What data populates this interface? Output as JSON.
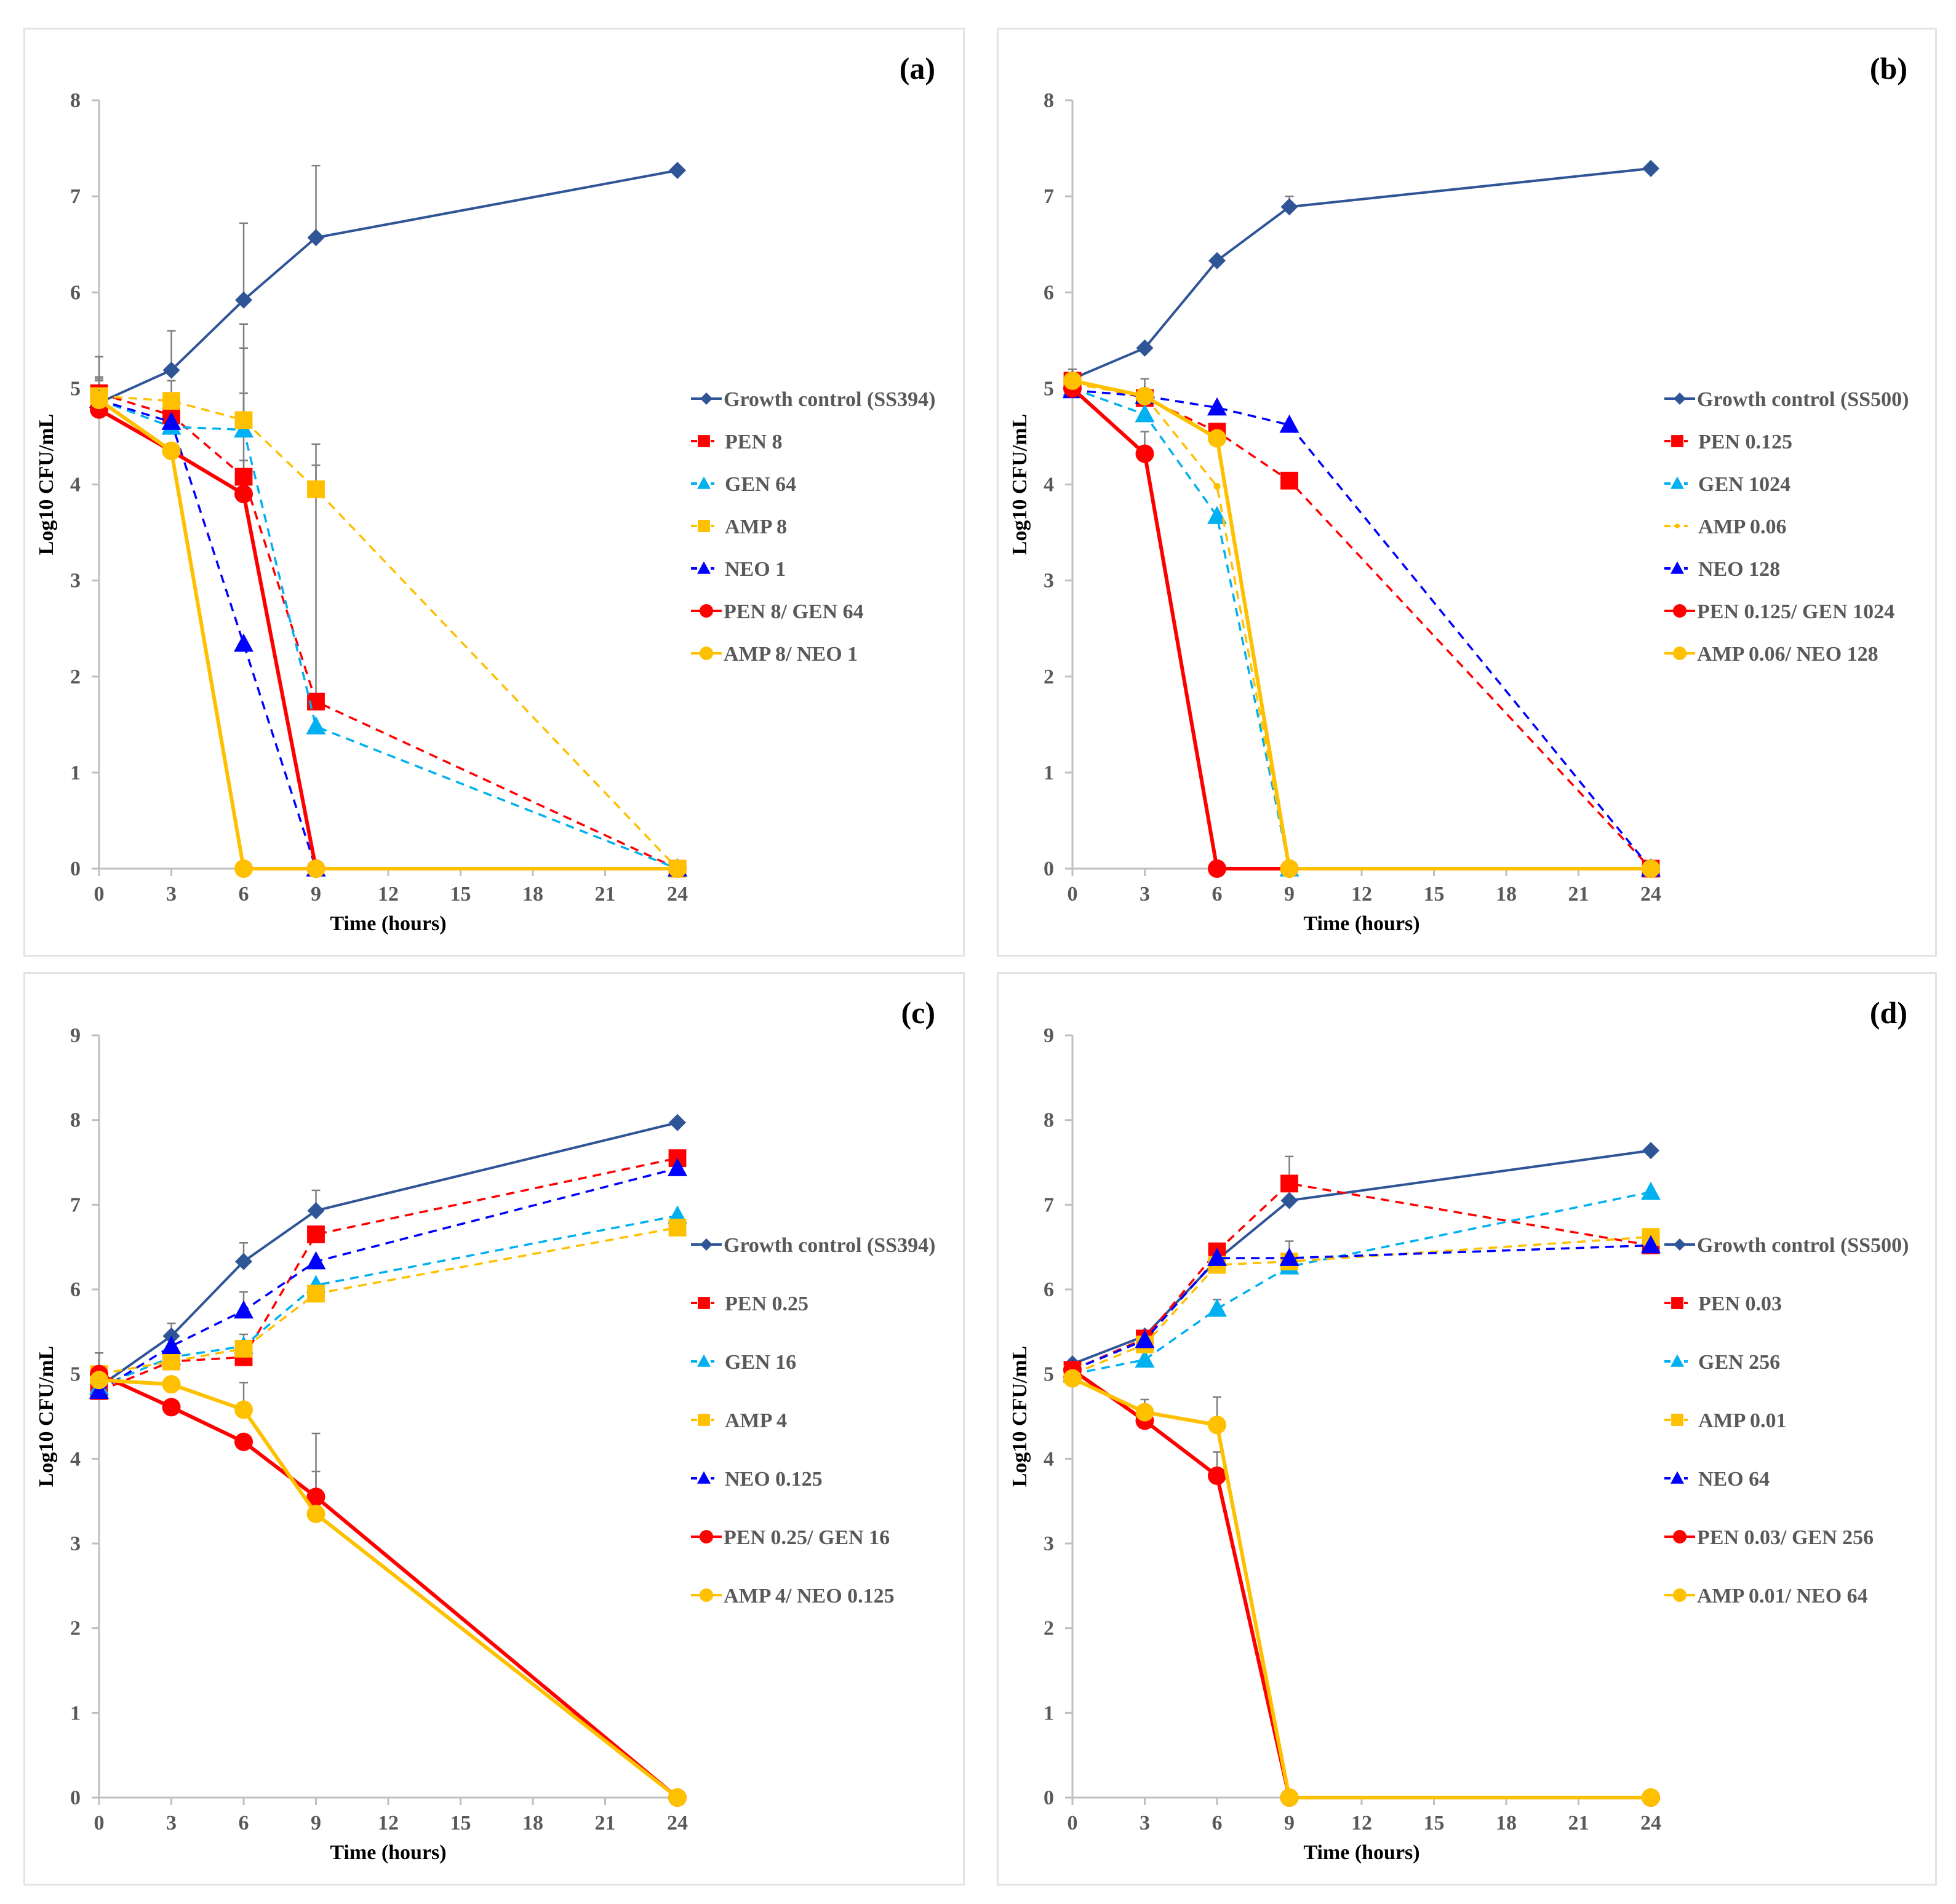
{
  "figure": {
    "colors": {
      "growth_control": "#2F5597",
      "pen": "#FF0000",
      "gen": "#00B0F0",
      "amp": "#FFC000",
      "neo": "#0000FF",
      "axis": "#BFBFBF",
      "errorbar": "#7F7F7F"
    }
  },
  "chart_data": [
    {
      "id": "a",
      "panel_label": "(a)",
      "type": "line",
      "xlabel": "Time (hours)",
      "ylabel": "Log10 CFU/mL",
      "xlim": [
        0,
        24
      ],
      "ylim": [
        0,
        8
      ],
      "xticks": [
        0,
        3,
        6,
        9,
        12,
        15,
        18,
        21,
        24
      ],
      "yticks": [
        0,
        1,
        2,
        3,
        4,
        5,
        6,
        7,
        8
      ],
      "x": [
        0,
        3,
        6,
        9,
        24
      ],
      "legend_position": "right",
      "series": [
        {
          "name": "Growth control (SS394)",
          "color": "#2F5597",
          "marker": "diamond",
          "dash": false,
          "values": [
            4.85,
            5.19,
            5.92,
            6.57,
            7.27
          ],
          "err_upper": [
            5.33,
            5.6,
            6.72,
            7.32,
            null
          ]
        },
        {
          "name": "PEN 8",
          "color": "#FF0000",
          "marker": "square",
          "dash": true,
          "values": [
            4.95,
            4.72,
            4.08,
            1.74,
            0
          ],
          "err_upper": [
            5.12,
            null,
            5.42,
            4.2,
            null
          ]
        },
        {
          "name": "GEN 64",
          "color": "#00B0F0",
          "marker": "triangle",
          "dash": true,
          "values": [
            4.88,
            4.6,
            4.57,
            1.48,
            0
          ],
          "err_upper": [
            5.1,
            null,
            5.67,
            null,
            null
          ]
        },
        {
          "name": "AMP 8",
          "color": "#FFC000",
          "marker": "square",
          "dash": true,
          "values": [
            4.92,
            4.87,
            4.67,
            3.95,
            0
          ],
          "err_upper": [
            5.08,
            5.08,
            4.95,
            4.42,
            null
          ]
        },
        {
          "name": "NEO 1",
          "color": "#0000FF",
          "marker": "triangle",
          "dash": true,
          "values": [
            4.88,
            4.65,
            2.34,
            0,
            0
          ],
          "err_upper": [
            null,
            null,
            null,
            null,
            null
          ]
        },
        {
          "name": "PEN 8/ GEN 64",
          "color": "#FF0000",
          "marker": "circle",
          "dash": false,
          "values": [
            4.78,
            4.35,
            3.9,
            0,
            0
          ],
          "err_upper": [
            null,
            null,
            4.25,
            null,
            null
          ]
        },
        {
          "name": "AMP 8/ NEO 1",
          "color": "#FFC000",
          "marker": "circle",
          "dash": false,
          "values": [
            4.88,
            4.35,
            0,
            0,
            0
          ],
          "err_upper": [
            null,
            null,
            null,
            null,
            null
          ]
        }
      ]
    },
    {
      "id": "b",
      "panel_label": "(b)",
      "type": "line",
      "xlabel": "Time (hours)",
      "ylabel": "Log10 CFU/mL",
      "xlim": [
        0,
        24
      ],
      "ylim": [
        0,
        8
      ],
      "xticks": [
        0,
        3,
        6,
        9,
        12,
        15,
        18,
        21,
        24
      ],
      "yticks": [
        0,
        1,
        2,
        3,
        4,
        5,
        6,
        7,
        8
      ],
      "x": [
        0,
        3,
        6,
        9,
        24
      ],
      "legend_position": "right",
      "series": [
        {
          "name": "Growth control (SS500)",
          "color": "#2F5597",
          "marker": "diamond",
          "dash": false,
          "values": [
            5.1,
            5.42,
            6.33,
            6.89,
            7.29
          ],
          "err_upper": [
            5.2,
            null,
            null,
            7.0,
            null
          ]
        },
        {
          "name": "PEN 0.125",
          "color": "#FF0000",
          "marker": "square",
          "dash": true,
          "values": [
            5.08,
            4.9,
            4.55,
            4.04,
            0
          ],
          "err_upper": [
            null,
            null,
            null,
            null,
            null
          ]
        },
        {
          "name": "GEN 1024",
          "color": "#00B0F0",
          "marker": "triangle",
          "dash": true,
          "values": [
            5.0,
            4.73,
            3.67,
            0,
            0
          ],
          "err_upper": [
            null,
            null,
            null,
            null,
            null
          ]
        },
        {
          "name": "AMP 0.06",
          "color": "#FFC000",
          "marker": "dot",
          "dash": true,
          "values": [
            5.05,
            4.92,
            3.98,
            0,
            0
          ],
          "err_upper": [
            null,
            null,
            null,
            null,
            null
          ]
        },
        {
          "name": "NEO 128",
          "color": "#0000FF",
          "marker": "triangle",
          "dash": true,
          "values": [
            4.98,
            4.92,
            4.8,
            4.62,
            0
          ],
          "err_upper": [
            null,
            null,
            null,
            null,
            null
          ]
        },
        {
          "name": "PEN 0.125/ GEN 1024",
          "color": "#FF0000",
          "marker": "circle",
          "dash": false,
          "values": [
            5.0,
            4.32,
            0,
            0,
            0
          ],
          "err_upper": [
            null,
            4.55,
            null,
            null,
            null
          ]
        },
        {
          "name": "AMP 0.06/ NEO 128",
          "color": "#FFC000",
          "marker": "circle",
          "dash": false,
          "values": [
            5.08,
            4.92,
            4.48,
            0,
            0
          ],
          "err_upper": [
            null,
            5.1,
            null,
            null,
            null
          ]
        }
      ]
    },
    {
      "id": "c",
      "panel_label": "(c)",
      "type": "line",
      "xlabel": "Time (hours)",
      "ylabel": "Log10 CFU/mL",
      "xlim": [
        0,
        24
      ],
      "ylim": [
        0,
        9
      ],
      "xticks": [
        0,
        3,
        6,
        9,
        12,
        15,
        18,
        21,
        24
      ],
      "yticks": [
        0,
        1,
        2,
        3,
        4,
        5,
        6,
        7,
        8,
        9
      ],
      "x": [
        0,
        3,
        6,
        9,
        24
      ],
      "legend_position": "right",
      "series": [
        {
          "name": "Growth control (SS394)",
          "color": "#2F5597",
          "marker": "diamond",
          "dash": false,
          "values": [
            4.85,
            5.45,
            6.33,
            6.93,
            7.97
          ],
          "err_upper": [
            5.25,
            5.6,
            6.55,
            7.17,
            null
          ]
        },
        {
          "name": "PEN 0.25",
          "color": "#FF0000",
          "marker": "square",
          "dash": true,
          "values": [
            4.8,
            5.15,
            5.2,
            6.65,
            7.55
          ],
          "err_upper": [
            null,
            null,
            null,
            null,
            null
          ]
        },
        {
          "name": "GEN 16",
          "color": "#00B0F0",
          "marker": "triangle",
          "dash": true,
          "values": [
            4.85,
            5.2,
            5.33,
            6.05,
            6.87
          ],
          "err_upper": [
            null,
            null,
            5.47,
            null,
            null
          ]
        },
        {
          "name": "AMP 4",
          "color": "#FFC000",
          "marker": "square",
          "dash": true,
          "values": [
            5.0,
            5.15,
            5.3,
            5.95,
            6.73
          ],
          "err_upper": [
            null,
            null,
            null,
            null,
            null
          ]
        },
        {
          "name": "NEO 0.125",
          "color": "#0000FF",
          "marker": "triangle",
          "dash": true,
          "values": [
            4.8,
            5.33,
            5.75,
            6.33,
            7.43
          ],
          "err_upper": [
            null,
            null,
            5.97,
            null,
            null
          ]
        },
        {
          "name": "PEN 0.25/ GEN 16",
          "color": "#FF0000",
          "marker": "circle",
          "dash": false,
          "values": [
            5.0,
            4.61,
            4.2,
            3.55,
            0
          ],
          "err_upper": [
            null,
            null,
            null,
            3.85,
            null
          ]
        },
        {
          "name": "AMP 4/ NEO 0.125",
          "color": "#FFC000",
          "marker": "circle",
          "dash": false,
          "values": [
            4.93,
            4.88,
            4.58,
            3.35,
            0
          ],
          "err_upper": [
            null,
            null,
            4.9,
            4.3,
            null
          ]
        }
      ]
    },
    {
      "id": "d",
      "panel_label": "(d)",
      "type": "line",
      "xlabel": "Time (hours)",
      "ylabel": "Log10 CFU/mL",
      "xlim": [
        0,
        24
      ],
      "ylim": [
        0,
        9
      ],
      "xticks": [
        0,
        3,
        6,
        9,
        12,
        15,
        18,
        21,
        24
      ],
      "yticks": [
        0,
        1,
        2,
        3,
        4,
        5,
        6,
        7,
        8,
        9
      ],
      "x": [
        0,
        3,
        6,
        9,
        24
      ],
      "legend_position": "right",
      "series": [
        {
          "name": "Growth control (SS500)",
          "color": "#2F5597",
          "marker": "diamond",
          "dash": false,
          "values": [
            5.12,
            5.45,
            6.35,
            7.05,
            7.64
          ],
          "err_upper": [
            null,
            null,
            null,
            null,
            null
          ]
        },
        {
          "name": "PEN 0.03",
          "color": "#FF0000",
          "marker": "square",
          "dash": true,
          "values": [
            5.05,
            5.42,
            6.45,
            7.25,
            6.52
          ],
          "err_upper": [
            null,
            null,
            null,
            7.57,
            null
          ]
        },
        {
          "name": "GEN 256",
          "color": "#00B0F0",
          "marker": "triangle",
          "dash": true,
          "values": [
            5.0,
            5.17,
            5.77,
            6.27,
            7.15
          ],
          "err_upper": [
            null,
            null,
            5.88,
            null,
            null
          ]
        },
        {
          "name": "AMP 0.01",
          "color": "#FFC000",
          "marker": "square",
          "dash": true,
          "values": [
            5.0,
            5.35,
            6.29,
            6.33,
            6.62
          ],
          "err_upper": [
            null,
            null,
            null,
            6.57,
            null
          ]
        },
        {
          "name": "NEO 64",
          "color": "#0000FF",
          "marker": "triangle",
          "dash": true,
          "values": [
            5.05,
            5.4,
            6.37,
            6.37,
            6.52
          ],
          "err_upper": [
            null,
            null,
            null,
            null,
            null
          ]
        },
        {
          "name": "PEN 0.03/ GEN 256",
          "color": "#FF0000",
          "marker": "circle",
          "dash": false,
          "values": [
            5.05,
            4.45,
            3.8,
            0,
            0
          ],
          "err_upper": [
            null,
            null,
            4.08,
            null,
            null
          ]
        },
        {
          "name": "AMP 0.01/ NEO 64",
          "color": "#FFC000",
          "marker": "circle",
          "dash": false,
          "values": [
            4.95,
            4.55,
            4.4,
            0,
            0
          ],
          "err_upper": [
            null,
            4.7,
            4.73,
            null,
            null
          ]
        }
      ]
    }
  ]
}
